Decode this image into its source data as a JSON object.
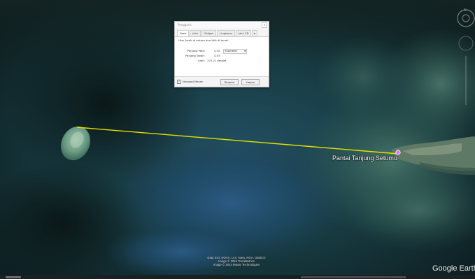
{
  "dialog": {
    "title": "Penggaris",
    "close_label": "x",
    "tabs": [
      "Garis",
      "Jalur",
      "Poligon",
      "Lingkaran",
      "Jalur 3D",
      "▸"
    ],
    "active_tab": "Garis",
    "description": "Ukur jarak di antara dua titik di tanah",
    "rows": [
      {
        "label": "Panjang Peta:",
        "value": "4,53",
        "unit": "Kilometer"
      },
      {
        "label": "Panjang Tanah:",
        "value": "4,53"
      },
      {
        "label": "Arah:",
        "value": "275,21 derajat"
      }
    ],
    "navigate_mouse": {
      "label": "Navigasi Mouse",
      "checked": true,
      "check_glyph": "✓"
    },
    "save_label": "Simpan",
    "clear_label": "Hapus"
  },
  "map": {
    "place_label": "Pantai Tanjung Setumu",
    "credits": [
      "Data SIO, NOAA, U.S. Navy, NGA, GEBCO",
      "Image © 2024 TerraMetrics",
      "Image © 2024 Maxar Technologies"
    ],
    "watermark": "Google Earth",
    "ruler_color": "#e8e000",
    "pin_color": "#e070ff"
  }
}
